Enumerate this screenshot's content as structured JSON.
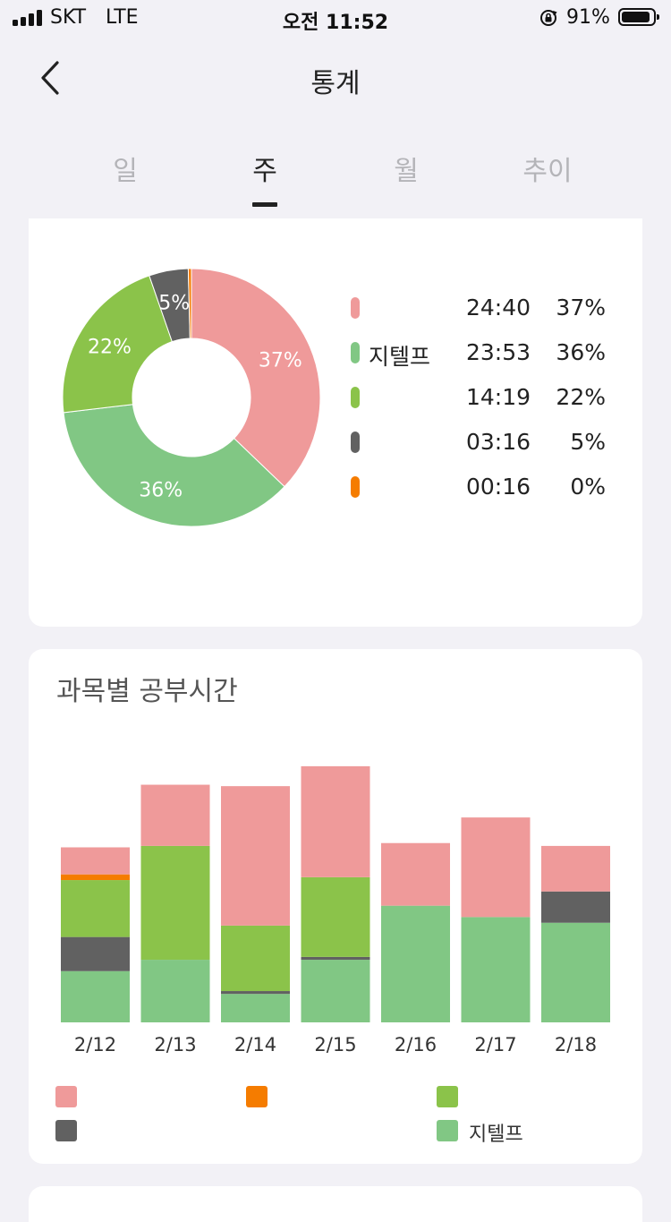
{
  "status_bar": {
    "carrier": "SKT",
    "network": "LTE",
    "time": "오전 11:52",
    "battery_pct": "91%",
    "battery_level": 0.91
  },
  "nav": {
    "title": "통계"
  },
  "tabs": [
    {
      "label": "일",
      "active": false
    },
    {
      "label": "주",
      "active": true
    },
    {
      "label": "월",
      "active": false
    },
    {
      "label": "추이",
      "active": false
    }
  ],
  "subjects": [
    {
      "name": "",
      "color": "#ef9a9a"
    },
    {
      "name": "지텔프",
      "color": "#81c784"
    },
    {
      "name": "",
      "color": "#8bc34a"
    },
    {
      "name": "",
      "color": "#616161"
    },
    {
      "name": "",
      "color": "#f57c00"
    }
  ],
  "summary": {
    "rows": [
      {
        "subject": 0,
        "time": "24:40",
        "pct": "37%",
        "value": 37.4
      },
      {
        "subject": 1,
        "time": "23:53",
        "pct": "36%",
        "value": 36.2
      },
      {
        "subject": 2,
        "time": "14:19",
        "pct": "22%",
        "value": 21.7
      },
      {
        "subject": 3,
        "time": "03:16",
        "pct": "5%",
        "value": 4.95
      },
      {
        "subject": 4,
        "time": "00:16",
        "pct": "0%",
        "value": 0.4
      }
    ]
  },
  "bar_card": {
    "title": "과목별 공부시간"
  },
  "chart_data": [
    {
      "type": "pie",
      "labels": [
        "",
        "지텔프",
        "",
        "",
        ""
      ],
      "values": [
        37.4,
        36.2,
        21.7,
        4.95,
        0.4
      ],
      "slice_labels": [
        "37%",
        "36%",
        "22%",
        "5%",
        ""
      ],
      "colors": [
        "#ef9a9a",
        "#81c784",
        "#8bc34a",
        "#616161",
        "#f57c00"
      ]
    },
    {
      "type": "bar",
      "stacked": true,
      "categories": [
        "2/12",
        "2/13",
        "2/14",
        "2/15",
        "2/16",
        "2/17",
        "2/18"
      ],
      "series": [
        {
          "subject": 1,
          "color": "#81c784",
          "values": [
            1.8,
            2.2,
            1.0,
            2.2,
            4.1,
            3.7,
            3.5
          ]
        },
        {
          "subject": 3,
          "color": "#616161",
          "values": [
            1.2,
            0,
            0.1,
            0.1,
            0,
            0,
            1.1
          ]
        },
        {
          "subject": 2,
          "color": "#8bc34a",
          "values": [
            2.0,
            4.0,
            2.3,
            2.8,
            0,
            0,
            0
          ]
        },
        {
          "subject": 4,
          "color": "#f57c00",
          "values": [
            0.2,
            0,
            0,
            0,
            0,
            0,
            0
          ]
        },
        {
          "subject": 0,
          "color": "#ef9a9a",
          "values": [
            0.95,
            2.15,
            4.9,
            3.9,
            2.2,
            3.5,
            1.6
          ]
        }
      ],
      "ylim": [
        0,
        9.5
      ],
      "grid": false,
      "legend_position": "bottom"
    }
  ]
}
